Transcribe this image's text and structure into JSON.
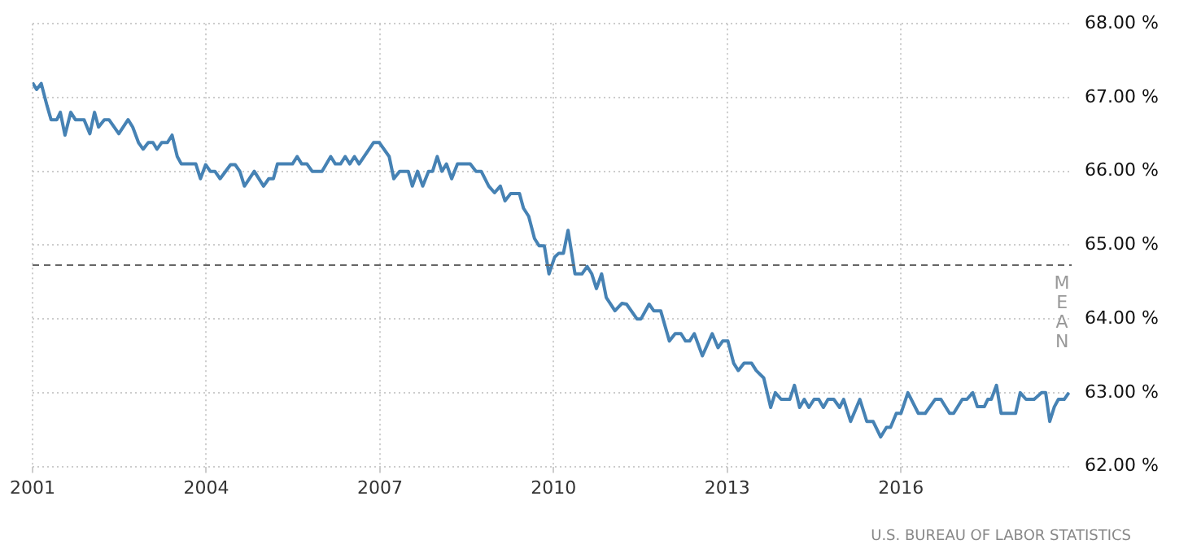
{
  "chart_data": {
    "type": "line",
    "x": [
      2001.0,
      2001.07,
      2001.15,
      2001.25,
      2001.32,
      2001.42,
      2001.48,
      2001.56,
      2001.66,
      2001.74,
      2001.89,
      2001.99,
      2002.07,
      2002.14,
      2002.24,
      2002.32,
      2002.49,
      2002.65,
      2002.73,
      2002.83,
      2002.91,
      2003.0,
      2003.08,
      2003.15,
      2003.23,
      2003.33,
      2003.41,
      2003.5,
      2003.57,
      2003.82,
      2003.9,
      2003.99,
      2004.07,
      2004.15,
      2004.24,
      2004.42,
      2004.5,
      2004.58,
      2004.66,
      2004.83,
      2004.99,
      2005.08,
      2005.16,
      2005.23,
      2005.49,
      2005.57,
      2005.65,
      2005.74,
      2005.83,
      2006.0,
      2006.15,
      2006.23,
      2006.32,
      2006.4,
      2006.48,
      2006.56,
      2006.64,
      2006.89,
      2006.99,
      2007.16,
      2007.24,
      2007.34,
      2007.49,
      2007.56,
      2007.65,
      2007.74,
      2007.84,
      2007.91,
      2007.99,
      2008.07,
      2008.15,
      2008.24,
      2008.34,
      2008.56,
      2008.66,
      2008.75,
      2008.88,
      2008.98,
      2009.08,
      2009.16,
      2009.26,
      2009.41,
      2009.48,
      2009.57,
      2009.67,
      2009.75,
      2009.84,
      2009.92,
      2010.02,
      2010.09,
      2010.17,
      2010.25,
      2010.37,
      2010.49,
      2010.58,
      2010.66,
      2010.74,
      2010.83,
      2010.91,
      2011.06,
      2011.18,
      2011.26,
      2011.44,
      2011.51,
      2011.65,
      2011.73,
      2011.85,
      2012.0,
      2012.1,
      2012.2,
      2012.28,
      2012.35,
      2012.43,
      2012.57,
      2012.74,
      2012.84,
      2012.92,
      2013.01,
      2013.11,
      2013.19,
      2013.29,
      2013.42,
      2013.5,
      2013.63,
      2013.75,
      2013.83,
      2013.93,
      2014.08,
      2014.16,
      2014.25,
      2014.33,
      2014.41,
      2014.5,
      2014.58,
      2014.66,
      2014.74,
      2014.84,
      2014.94,
      2015.01,
      2015.13,
      2015.29,
      2015.41,
      2015.52,
      2015.65,
      2015.75,
      2015.82,
      2015.92,
      2016.0,
      2016.12,
      2016.3,
      2016.42,
      2016.59,
      2016.69,
      2016.84,
      2016.91,
      2017.06,
      2017.14,
      2017.24,
      2017.32,
      2017.44,
      2017.5,
      2017.56,
      2017.65,
      2017.73,
      2017.98,
      2018.06,
      2018.16,
      2018.3,
      2018.43,
      2018.5,
      2018.57,
      2018.65,
      2018.72,
      2018.82,
      2018.9
    ],
    "series": [
      {
        "color": "#4682b4",
        "values": [
          67.2,
          67.11,
          67.19,
          66.89,
          66.7,
          66.7,
          66.8,
          66.49,
          66.8,
          66.7,
          66.7,
          66.51,
          66.8,
          66.6,
          66.7,
          66.7,
          66.51,
          66.7,
          66.6,
          66.39,
          66.3,
          66.39,
          66.39,
          66.3,
          66.39,
          66.39,
          66.49,
          66.2,
          66.1,
          66.1,
          65.9,
          66.09,
          66.0,
          66.0,
          65.9,
          66.09,
          66.09,
          66.0,
          65.8,
          66.0,
          65.8,
          65.9,
          65.9,
          66.1,
          66.1,
          66.2,
          66.1,
          66.1,
          66.0,
          66.0,
          66.2,
          66.1,
          66.1,
          66.2,
          66.1,
          66.2,
          66.1,
          66.39,
          66.39,
          66.2,
          65.9,
          66.0,
          66.0,
          65.8,
          66.0,
          65.8,
          66.0,
          66.0,
          66.2,
          66.0,
          66.1,
          65.9,
          66.1,
          66.1,
          66.0,
          66.0,
          65.8,
          65.71,
          65.8,
          65.6,
          65.7,
          65.7,
          65.5,
          65.39,
          65.09,
          64.99,
          64.99,
          64.61,
          64.84,
          64.89,
          64.89,
          65.2,
          64.61,
          64.61,
          64.71,
          64.61,
          64.41,
          64.61,
          64.29,
          64.11,
          64.21,
          64.2,
          64.0,
          64.0,
          64.2,
          64.11,
          64.11,
          63.7,
          63.8,
          63.8,
          63.7,
          63.7,
          63.8,
          63.5,
          63.8,
          63.61,
          63.7,
          63.7,
          63.4,
          63.3,
          63.4,
          63.4,
          63.3,
          63.2,
          62.8,
          63.0,
          62.91,
          62.91,
          63.1,
          62.8,
          62.91,
          62.8,
          62.91,
          62.91,
          62.8,
          62.91,
          62.91,
          62.8,
          62.91,
          62.61,
          62.91,
          62.61,
          62.61,
          62.4,
          62.53,
          62.53,
          62.72,
          62.72,
          63.0,
          62.72,
          62.72,
          62.91,
          62.91,
          62.72,
          62.72,
          62.91,
          62.91,
          63.0,
          62.81,
          62.81,
          62.91,
          62.91,
          63.1,
          62.72,
          62.72,
          63.0,
          62.91,
          62.91,
          63.0,
          63.0,
          62.61,
          62.81,
          62.91,
          62.91,
          63.0
        ]
      }
    ],
    "xlim": [
      2001,
      2018.95
    ],
    "xticks": [
      2001,
      2004,
      2007,
      2010,
      2013,
      2016
    ],
    "ylim": [
      62,
      68
    ],
    "yticks": [
      {
        "value": 62,
        "label": "62.00 %"
      },
      {
        "value": 63,
        "label": "63.00 %"
      },
      {
        "value": 64,
        "label": "64.00 %"
      },
      {
        "value": 65,
        "label": "65.00 %"
      },
      {
        "value": 66,
        "label": "66.00 %"
      },
      {
        "value": 67,
        "label": "67.00 %"
      },
      {
        "value": 68,
        "label": "68.00 %"
      }
    ],
    "grid": true,
    "legend": false,
    "marker": "none",
    "line_style": "solid",
    "ref_lines": [
      {
        "axis": "y",
        "value": 64.73,
        "label": "MEAN",
        "color": "#666666",
        "line_style": "dashed"
      }
    ],
    "annotations": [
      "U.S. BUREAU OF LABOR STATISTICS"
    ]
  }
}
